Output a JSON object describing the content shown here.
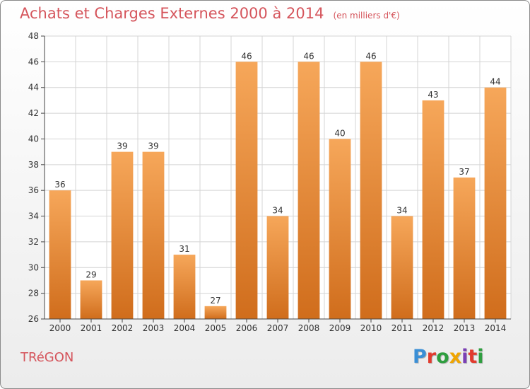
{
  "header": {
    "title": "Achats et Charges Externes 2000 à 2014",
    "subtitle": "(en milliers d'€)"
  },
  "footer": {
    "commune": "TRéGON",
    "logo_text": "Proxiti",
    "logo_colors": [
      "#3a8fd6",
      "#e23b2e",
      "#2e9e3f",
      "#f0a500",
      "#7a3fb5",
      "#e23b2e",
      "#2e9e3f"
    ]
  },
  "chart_data": {
    "type": "bar",
    "title": "Achats et Charges Externes 2000 à 2014",
    "subtitle": "(en milliers d'€)",
    "xlabel": "",
    "ylabel": "",
    "categories": [
      "2000",
      "2001",
      "2002",
      "2003",
      "2004",
      "2005",
      "2006",
      "2007",
      "2008",
      "2009",
      "2010",
      "2011",
      "2012",
      "2013",
      "2014"
    ],
    "values": [
      36,
      29,
      39,
      39,
      31,
      27,
      46,
      34,
      46,
      40,
      46,
      34,
      43,
      37,
      44
    ],
    "ylim": [
      26,
      48
    ],
    "yticks": [
      26,
      28,
      30,
      32,
      34,
      36,
      38,
      40,
      42,
      44,
      46,
      48
    ],
    "grid": true,
    "legend": "none",
    "colors": {
      "bar_light": "#f6a75a",
      "bar_dark": "#d06d1c",
      "grid": "#d4d4d4",
      "axis": "#444444"
    }
  }
}
